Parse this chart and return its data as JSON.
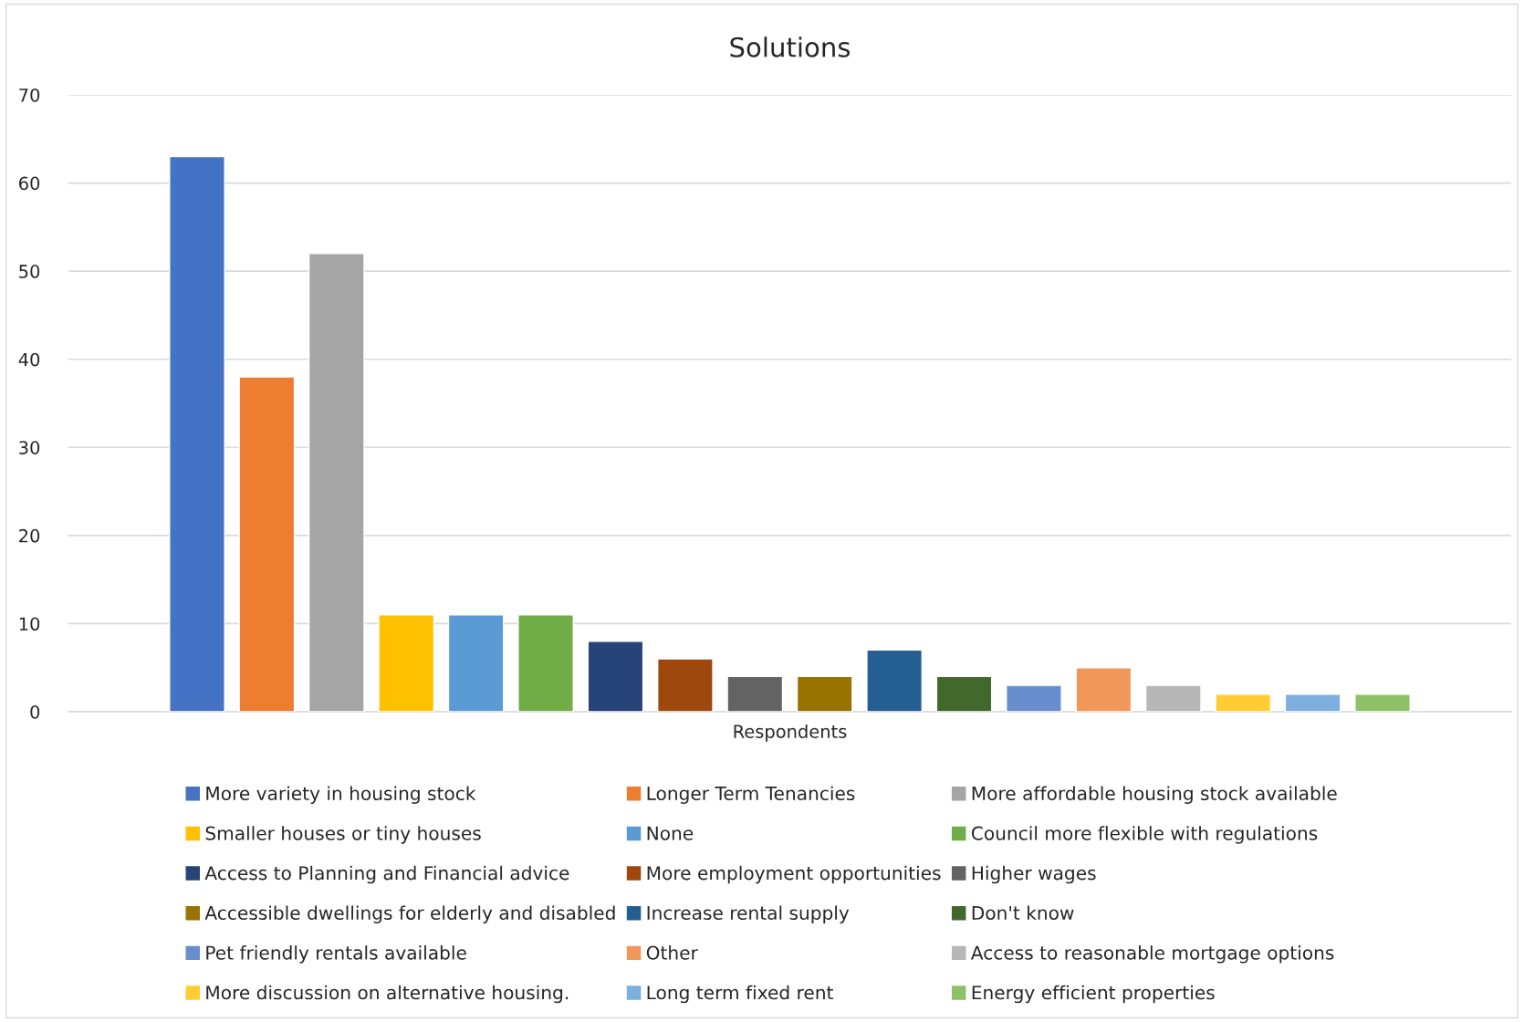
{
  "chart_data": {
    "type": "bar",
    "title": "Solutions",
    "categories": [
      "Respondents"
    ],
    "ylim": [
      0,
      70
    ],
    "yticks": [
      0,
      10,
      20,
      30,
      40,
      50,
      60,
      70
    ],
    "grid": "y",
    "legend": "bottom",
    "series": [
      {
        "name": "More variety in housing stock",
        "color": "#4472c4",
        "values": [
          63
        ]
      },
      {
        "name": "Longer Term Tenancies",
        "color": "#ed7d31",
        "values": [
          38
        ]
      },
      {
        "name": "More affordable housing stock available",
        "color": "#a5a5a5",
        "values": [
          52
        ]
      },
      {
        "name": "Smaller houses or tiny houses",
        "color": "#ffc000",
        "values": [
          11
        ]
      },
      {
        "name": "None",
        "color": "#5b9bd5",
        "values": [
          11
        ]
      },
      {
        "name": "Council more flexible with regulations",
        "color": "#70ad47",
        "values": [
          11
        ]
      },
      {
        "name": "Access to Planning and Financial advice",
        "color": "#264478",
        "values": [
          8
        ]
      },
      {
        "name": "More employment opportunities",
        "color": "#9e480e",
        "values": [
          6
        ]
      },
      {
        "name": "Higher wages",
        "color": "#636363",
        "values": [
          4
        ]
      },
      {
        "name": "Accessible dwellings for elderly and disabled",
        "color": "#997300",
        "values": [
          4
        ]
      },
      {
        "name": "Increase rental supply",
        "color": "#255e91",
        "values": [
          7
        ]
      },
      {
        "name": "Don't know",
        "color": "#43682b",
        "values": [
          4
        ]
      },
      {
        "name": "Pet friendly rentals available",
        "color": "#698ed0",
        "values": [
          3
        ]
      },
      {
        "name": "Other",
        "color": "#f1975a",
        "values": [
          5
        ]
      },
      {
        "name": "Access to reasonable mortgage options",
        "color": "#b7b7b7",
        "values": [
          3
        ]
      },
      {
        "name": "More discussion on alternative housing.",
        "color": "#ffcd33",
        "values": [
          2
        ]
      },
      {
        "name": "Long term fixed rent",
        "color": "#7cafdd",
        "values": [
          2
        ]
      },
      {
        "name": "Energy efficient properties",
        "color": "#8cc168",
        "values": [
          2
        ]
      }
    ]
  }
}
